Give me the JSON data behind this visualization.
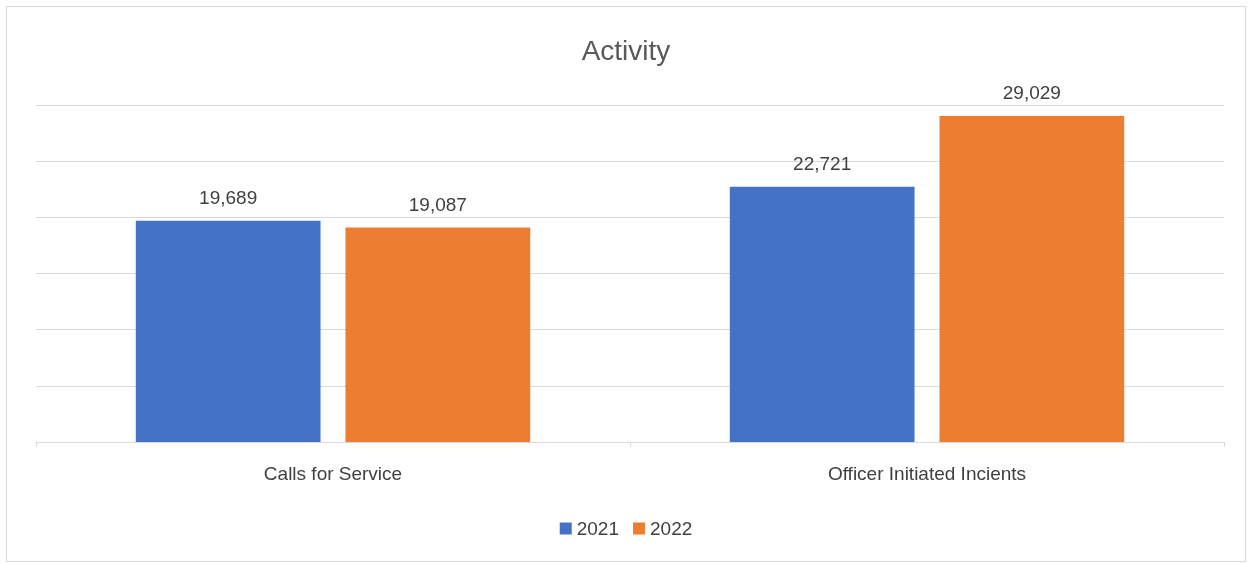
{
  "chart_data": {
    "type": "bar",
    "title": "Activity",
    "categories": [
      "Calls for Service",
      "Officer Initiated Incients"
    ],
    "series": [
      {
        "name": "2021",
        "color": "#4472c4",
        "values": [
          19689,
          22721
        ],
        "value_labels": [
          "19,689",
          "22,721"
        ]
      },
      {
        "name": "2022",
        "color": "#ed7d31",
        "values": [
          19087,
          29029
        ],
        "value_labels": [
          "19,087",
          "29,029"
        ]
      }
    ],
    "tick_labels": "x",
    "grid": "y",
    "legend": "bottom"
  }
}
